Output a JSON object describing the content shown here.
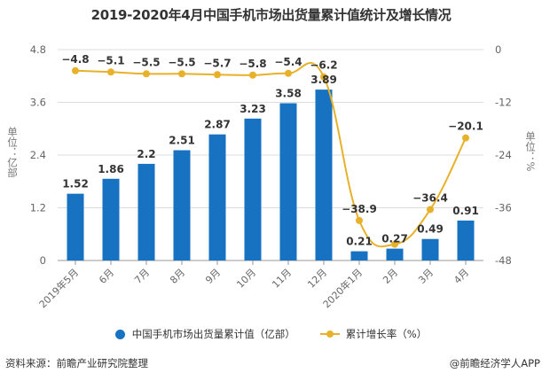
{
  "title": "2019-2020年4月中国手机市场出货量累计值统计及增长情况",
  "colors": {
    "bar": "#1872c2",
    "line": "#e8b12a",
    "grid": "#dddddd",
    "axis_text": "#666666",
    "label": "#333333"
  },
  "legend": {
    "bar_label": "中国手机市场出货量累计值（亿部）",
    "line_label": "累计增长率（%）"
  },
  "footer": {
    "source": "资料来源：前瞻产业研究院整理",
    "credit": "@前瞻经济学人APP"
  },
  "chart_data": {
    "type": "bar+line",
    "title": "2019-2020年4月中国手机市场出货量累计值统计及增长情况",
    "categories": [
      "2019年5月",
      "6月",
      "7月",
      "8月",
      "9月",
      "10月",
      "11月",
      "12月",
      "2020年1月",
      "2月",
      "3月",
      "4月"
    ],
    "series": [
      {
        "name": "中国手机市场出货量累计值（亿部）",
        "type": "bar",
        "axis": "left",
        "values": [
          1.52,
          1.86,
          2.2,
          2.51,
          2.87,
          3.23,
          3.58,
          3.89,
          0.21,
          0.27,
          0.49,
          0.91
        ],
        "labels": [
          "1.52",
          "1.86",
          "2.2",
          "2.51",
          "2.87",
          "3.23",
          "3.58",
          "3.89",
          "0.21",
          "0.27",
          "0.49",
          "0.91"
        ]
      },
      {
        "name": "累计增长率（%）",
        "type": "line",
        "axis": "right",
        "smooth": true,
        "values": [
          -4.8,
          -5.1,
          -5.5,
          -5.5,
          -5.7,
          -5.8,
          -5.4,
          -6.2,
          -38.9,
          -44.3,
          -36.4,
          -20.1
        ],
        "labels": [
          "-4.8",
          "-5.1",
          "-5.5",
          "-5.5",
          "-5.7",
          "-5.8",
          "-5.4",
          "-6.2",
          "-38.9",
          "",
          "-36.4",
          "-20.1"
        ]
      }
    ],
    "left_axis": {
      "label": "单位：亿部",
      "ylim": [
        0,
        4.8
      ],
      "ticks": [
        "0",
        "1.2",
        "2.4",
        "3.6",
        "4.8"
      ]
    },
    "right_axis": {
      "label": "单位：%",
      "ylim": [
        -48,
        0
      ],
      "ticks": [
        "-48",
        "-36",
        "-24",
        "-12",
        "0"
      ]
    },
    "grid": true,
    "legend_position": "bottom"
  }
}
